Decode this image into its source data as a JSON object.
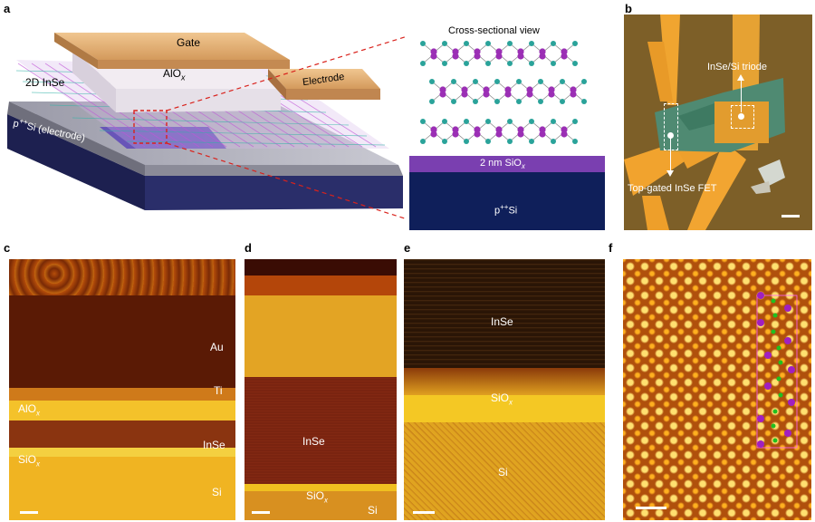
{
  "panels": {
    "a": {
      "letter": "a",
      "cross_section_title": "Cross-sectional view",
      "gate_label": "Gate",
      "oxide_label": "AlO",
      "oxide_sub": "x",
      "inse_label": "2D InSe",
      "electrode_label": "Electrode",
      "substrate_label_pre": "p",
      "substrate_sup": "++",
      "substrate_label_post": "Si (electrode)",
      "sio_label_pre": "2 nm SiO",
      "sio_sub": "x",
      "psi_pre": "p",
      "psi_sup": "++",
      "psi_post": "Si"
    },
    "b": {
      "letter": "b",
      "triode_label": "InSe/Si triode",
      "fet_label": "Top-gated InSe FET"
    },
    "c": {
      "letter": "c",
      "au": "Au",
      "ti": "Ti",
      "alo_pre": "AlO",
      "alo_sub": "x",
      "inse": "InSe",
      "sio_pre": "SiO",
      "sio_sub": "x",
      "si": "Si"
    },
    "d": {
      "letter": "d",
      "inse": "InSe",
      "sio_pre": "SiO",
      "sio_sub": "x",
      "si": "Si"
    },
    "e": {
      "letter": "e",
      "inse": "InSe",
      "sio_pre": "SiO",
      "sio_sub": "x",
      "si": "Si"
    },
    "f": {
      "letter": "f"
    }
  },
  "colors": {
    "gate_gold": "#e2b27a",
    "substrate_navy": "#0f1f5a",
    "sio_purple": "#7a3fb0",
    "atom_in": "#9b2fb5",
    "atom_se": "#2aa39a",
    "guide_red": "#d9221c",
    "stem_dark": "#5a1a05",
    "stem_bright": "#f0c020"
  }
}
